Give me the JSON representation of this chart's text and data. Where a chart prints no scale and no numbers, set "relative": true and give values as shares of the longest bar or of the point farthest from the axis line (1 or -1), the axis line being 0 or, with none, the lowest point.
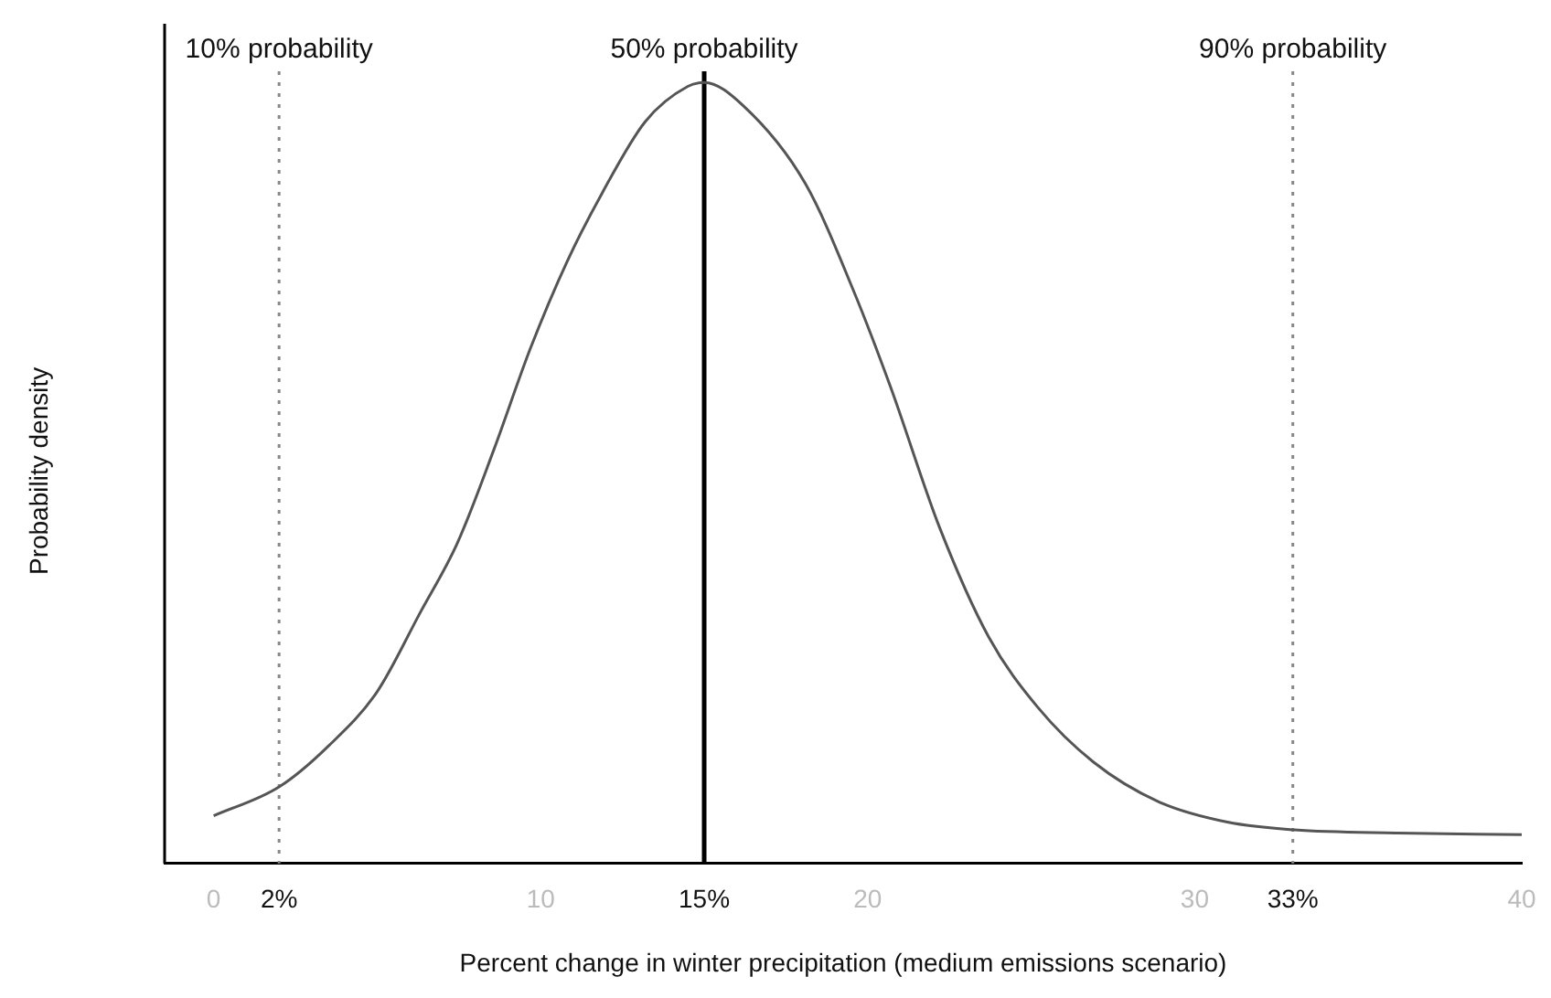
{
  "chart_data": {
    "type": "line",
    "relative": true,
    "xlabel": "Percent change in winter precipitation (medium emissions scenario)",
    "ylabel": "Probability density",
    "xlim": [
      -1.5,
      40
    ],
    "xticks": [
      0,
      {
        "value": 2,
        "label": "2%"
      },
      10,
      {
        "value": 15,
        "label": "15%"
      },
      20,
      30,
      {
        "value": 33,
        "label": "33%"
      },
      40
    ],
    "grid": false,
    "legend": false,
    "marker": "none",
    "line_style": "solid",
    "series": [
      {
        "color": "#555555",
        "x": [
          0,
          2,
          3.5,
          5,
          6.3,
          7.45,
          8.57,
          9.69,
          10.8,
          11.9,
          13.2,
          14.5,
          15,
          16.2,
          18.1,
          19.6,
          20.7,
          22.2,
          23.7,
          25.2,
          26.9,
          28.9,
          31,
          33.05,
          36.2,
          40
        ],
        "values": [
          0.061,
          0.098,
          0.15,
          0.22,
          0.32,
          0.41,
          0.53,
          0.66,
          0.77,
          0.86,
          0.95,
          0.995,
          1,
          0.97,
          0.87,
          0.73,
          0.61,
          0.43,
          0.29,
          0.2,
          0.13,
          0.079,
          0.053,
          0.043,
          0.039,
          0.037
        ]
      }
    ],
    "ref_lines": [
      {
        "axis": "x",
        "value": 2,
        "label": "10% probability",
        "color": "#888888",
        "line_style": "dotted"
      },
      {
        "axis": "x",
        "value": 15,
        "label": "50% probability",
        "color": "#000000",
        "line_style": "solid"
      },
      {
        "axis": "x",
        "value": 33,
        "label": "90% probability",
        "color": "#888888",
        "line_style": "dotted"
      }
    ]
  }
}
